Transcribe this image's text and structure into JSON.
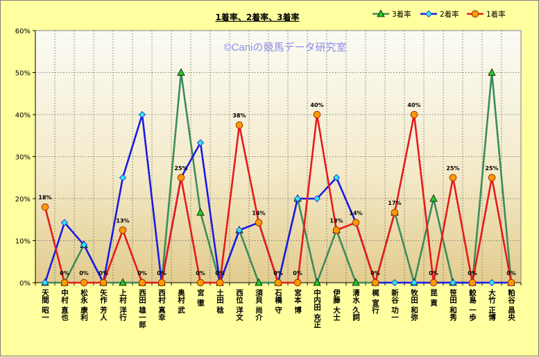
{
  "chart_data": {
    "type": "line",
    "title": "1着率、2着率、3着率",
    "watermark": "©Caniの競馬データ研究室",
    "ylim": [
      0,
      60
    ],
    "yticks": [
      "0%",
      "10%",
      "20%",
      "30%",
      "40%",
      "50%",
      "60%"
    ],
    "grid": true,
    "legend_position": "top-right",
    "categories": [
      "天間 昭一",
      "中村 直也",
      "松永 康利",
      "矢作 芳人",
      "上村 洋行",
      "西田 雄一郎",
      "西村 真幸",
      "奥村 武",
      "宮 徹",
      "土田 稔",
      "西位 洋文",
      "須貝 尚介",
      "石橋 守",
      "宮本 博",
      "中内田 充正",
      "伊藤 大士",
      "清水 久詞",
      "梶 宣行",
      "新谷 功一",
      "牧田 和弥",
      "昆 貢",
      "笹田 和秀",
      "鮫島 一歩",
      "大竹 正博",
      "粕谷 昌央"
    ],
    "series": [
      {
        "name": "3着率",
        "color": "#3A8C5C",
        "marker": "triangle",
        "marker_fill": "#22CC22",
        "values": [
          0,
          0,
          9,
          0,
          0,
          0,
          0,
          50,
          16.7,
          0,
          12.5,
          0,
          0,
          20,
          0,
          12.5,
          0,
          0,
          16.7,
          0,
          20,
          0,
          0,
          50,
          0
        ]
      },
      {
        "name": "2着率",
        "color": "#1A1AE6",
        "marker": "diamond",
        "marker_fill": "#2EE8E8",
        "values": [
          0,
          14.3,
          9,
          0,
          25,
          40,
          0,
          25,
          33.3,
          0,
          12.5,
          14.3,
          0,
          20,
          20,
          25,
          14.3,
          0,
          0,
          0,
          0,
          0,
          0,
          0,
          0
        ]
      },
      {
        "name": "1着率",
        "color": "#E61A1A",
        "marker": "circle",
        "marker_fill": "#FF9900",
        "values": [
          18,
          0,
          0,
          0,
          12.5,
          0,
          0,
          25,
          0,
          0,
          37.5,
          14.3,
          0,
          0,
          40,
          12.5,
          14.3,
          0,
          16.7,
          40,
          0,
          25,
          0,
          25,
          0
        ]
      }
    ],
    "data_labels": [
      "18%",
      "0%",
      "0%",
      "0%",
      "13%",
      "0%",
      "0%",
      "25%",
      "0%",
      "0%",
      "38%",
      "14%",
      "0%",
      "0%",
      "40%",
      "13%",
      "14%",
      "0%",
      "17%",
      "40%",
      "0%",
      "25%",
      "0%",
      "25%",
      "0%"
    ]
  }
}
